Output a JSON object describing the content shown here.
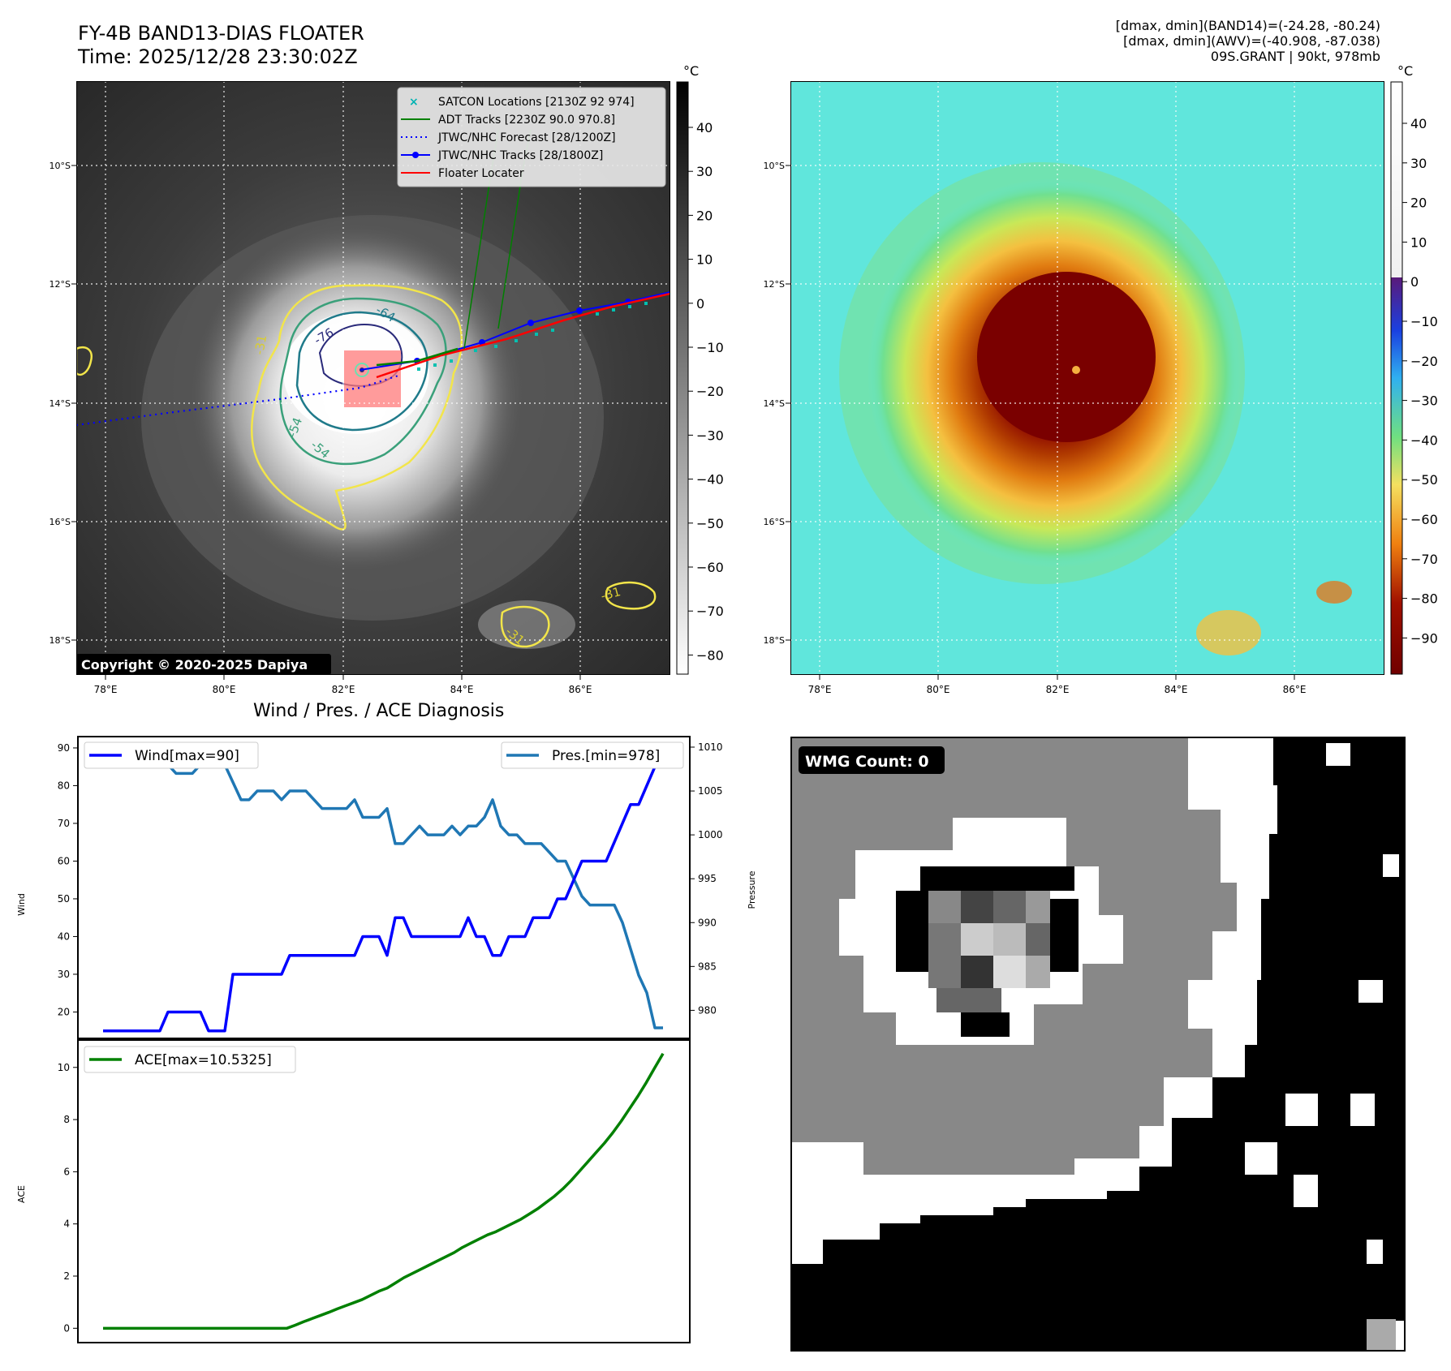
{
  "left_title": {
    "line1": "FY-4B BAND13-DIAS FLOATER",
    "line2": "Time: 2025/12/28 23:30:02Z"
  },
  "right_info": {
    "line1": "[dmax, dmin](BAND14)=(-24.28, -80.24)",
    "line2": "[dmax, dmin](AWV)=(-40.908, -87.038)",
    "line3": "09S.GRANT | 90kt, 978mb"
  },
  "copyright": "Copyright © 2020-2025 Dapiya",
  "diagnosis_title": "Wind / Pres. / ACE Diagnosis",
  "wmg_label": "WMG Count: 0",
  "map_axes": {
    "lat_ticks": [
      "10°S",
      "12°S",
      "14°S",
      "16°S",
      "18°S"
    ],
    "lon_ticks": [
      "78°E",
      "80°E",
      "82°E",
      "84°E",
      "86°E"
    ]
  },
  "legend": [
    {
      "label": "SATCON Locations [2130Z 92 974]",
      "color": "#00bcbc",
      "style": "x"
    },
    {
      "label": "ADT Tracks [2230Z 90.0 970.8]",
      "color": "#008000",
      "style": "solid"
    },
    {
      "label": "JTWC/NHC Forecast [28/1200Z]",
      "color": "#0000ff",
      "style": "dotted"
    },
    {
      "label": "JTWC/NHC Tracks [28/1800Z]",
      "color": "#0000ff",
      "style": "dot-line"
    },
    {
      "label": "Floater Locater",
      "color": "#ff0000",
      "style": "solid"
    }
  ],
  "contour_labels": [
    "-76",
    "-64",
    "-54",
    "-54",
    "-31",
    "-31",
    "-31"
  ],
  "colorbar_gray": {
    "unit": "°C",
    "ticks": [
      "40",
      "30",
      "20",
      "10",
      "0",
      "−10",
      "−20",
      "−30",
      "−40",
      "−50",
      "−60",
      "−70",
      "−80"
    ]
  },
  "colorbar_color": {
    "unit": "°C",
    "ticks": [
      "40",
      "30",
      "20",
      "10",
      "0",
      "−10",
      "−20",
      "−30",
      "−40",
      "−50",
      "−60",
      "−70",
      "−80",
      "−90"
    ]
  },
  "chart_data": [
    {
      "type": "line",
      "title": "Wind / Pres. / ACE Diagnosis",
      "ylabel": "Wind",
      "ylim": [
        13,
        93
      ],
      "yticks": [
        20,
        30,
        40,
        50,
        60,
        70,
        80,
        90
      ],
      "series": [
        {
          "name": "Wind[max=90]",
          "color": "#0000ff",
          "values": [
            15,
            15,
            15,
            15,
            15,
            15,
            15,
            15,
            20,
            20,
            20,
            20,
            20,
            15,
            15,
            15,
            30,
            30,
            30,
            30,
            30,
            30,
            30,
            35,
            35,
            35,
            35,
            35,
            35,
            35,
            35,
            35,
            40,
            40,
            40,
            35,
            45,
            45,
            40,
            40,
            40,
            40,
            40,
            40,
            40,
            45,
            40,
            40,
            35,
            35,
            40,
            40,
            40,
            45,
            45,
            45,
            50,
            50,
            55,
            60,
            60,
            60,
            60,
            65,
            70,
            75,
            75,
            80,
            85,
            90
          ]
        }
      ],
      "secondary_axis": {
        "ylabel": "Pressure",
        "ylim": [
          976.8,
          1011.2
        ],
        "yticks": [
          980,
          985,
          990,
          995,
          1000,
          1005,
          1010
        ],
        "series": [
          {
            "name": "Pres.[min=978]",
            "color": "#1f77b4",
            "values": [
              1009,
              1009,
              1008,
              1008,
              1008,
              1008,
              1008,
              1008,
              1008,
              1007,
              1007,
              1007,
              1008,
              1008,
              1008,
              1008,
              1006,
              1004,
              1004,
              1005,
              1005,
              1005,
              1004,
              1005,
              1005,
              1005,
              1004,
              1003,
              1003,
              1003,
              1003,
              1004,
              1002,
              1002,
              1002,
              1003,
              999,
              999,
              1000,
              1001,
              1000,
              1000,
              1000,
              1001,
              1000,
              1001,
              1001,
              1002,
              1004,
              1001,
              1000,
              1000,
              999,
              999,
              999,
              998,
              997,
              997,
              995,
              993,
              992,
              992,
              992,
              992,
              990,
              987,
              984,
              982,
              978,
              978
            ]
          }
        ]
      }
    },
    {
      "type": "line",
      "ylabel": "ACE",
      "ylim": [
        -0.55,
        11.05
      ],
      "yticks": [
        0,
        2,
        4,
        6,
        8,
        10
      ],
      "series": [
        {
          "name": "ACE[max=10.5325]",
          "color": "#008000",
          "values": [
            0,
            0,
            0,
            0,
            0,
            0,
            0,
            0,
            0,
            0,
            0,
            0,
            0,
            0,
            0,
            0,
            0,
            0,
            0,
            0,
            0,
            0,
            0,
            0.12,
            0.25,
            0.37,
            0.49,
            0.61,
            0.74,
            0.86,
            0.98,
            1.1,
            1.26,
            1.42,
            1.54,
            1.74,
            1.94,
            2.1,
            2.26,
            2.42,
            2.58,
            2.74,
            2.9,
            3.1,
            3.26,
            3.42,
            3.58,
            3.7,
            3.86,
            4.02,
            4.18,
            4.38,
            4.58,
            4.82,
            5.06,
            5.34,
            5.66,
            6.02,
            6.38,
            6.74,
            7.1,
            7.5,
            7.94,
            8.42,
            8.9,
            9.42,
            9.98,
            10.53
          ]
        }
      ]
    }
  ]
}
